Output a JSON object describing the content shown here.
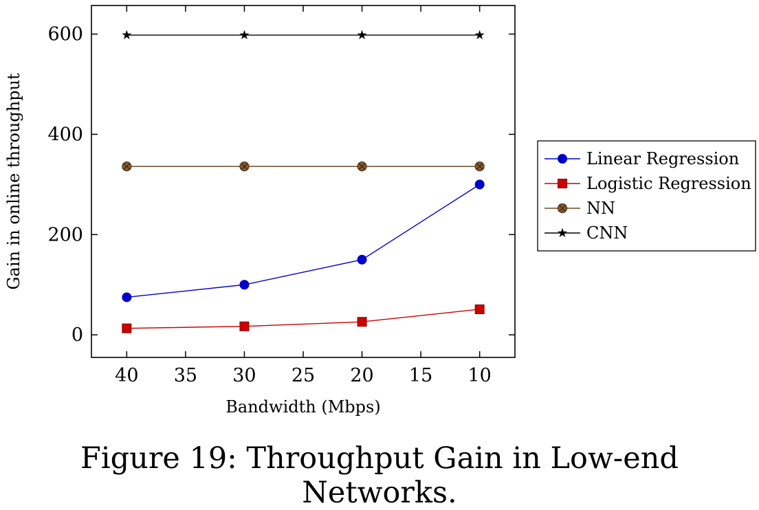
{
  "caption": "Figure 19: Throughput Gain in Low-end Networks.",
  "chart_data": {
    "type": "line",
    "xlabel": "Bandwidth (Mbps)",
    "ylabel": "Gain in online throughput",
    "x_reversed": true,
    "xlim": [
      43,
      7
    ],
    "ylim": [
      -45,
      657
    ],
    "xticks": [
      40,
      35,
      30,
      25,
      20,
      15,
      10
    ],
    "yticks": [
      0,
      200,
      400,
      600
    ],
    "grid": false,
    "legend_position": "outside-right",
    "x": [
      40,
      30,
      20,
      10
    ],
    "series": [
      {
        "name": "Linear Regression",
        "values": [
          75,
          100,
          150,
          300
        ],
        "color": "#0000cc",
        "marker": "circle"
      },
      {
        "name": "Logistic Regression",
        "values": [
          13,
          17,
          26,
          51
        ],
        "color": "#cc0000",
        "marker": "square"
      },
      {
        "name": "NN",
        "values": [
          336,
          336,
          336,
          336
        ],
        "color": "#6b4a24",
        "marker": "circle-x"
      },
      {
        "name": "CNN",
        "values": [
          598,
          598,
          598,
          598
        ],
        "color": "#000000",
        "marker": "star"
      }
    ]
  }
}
